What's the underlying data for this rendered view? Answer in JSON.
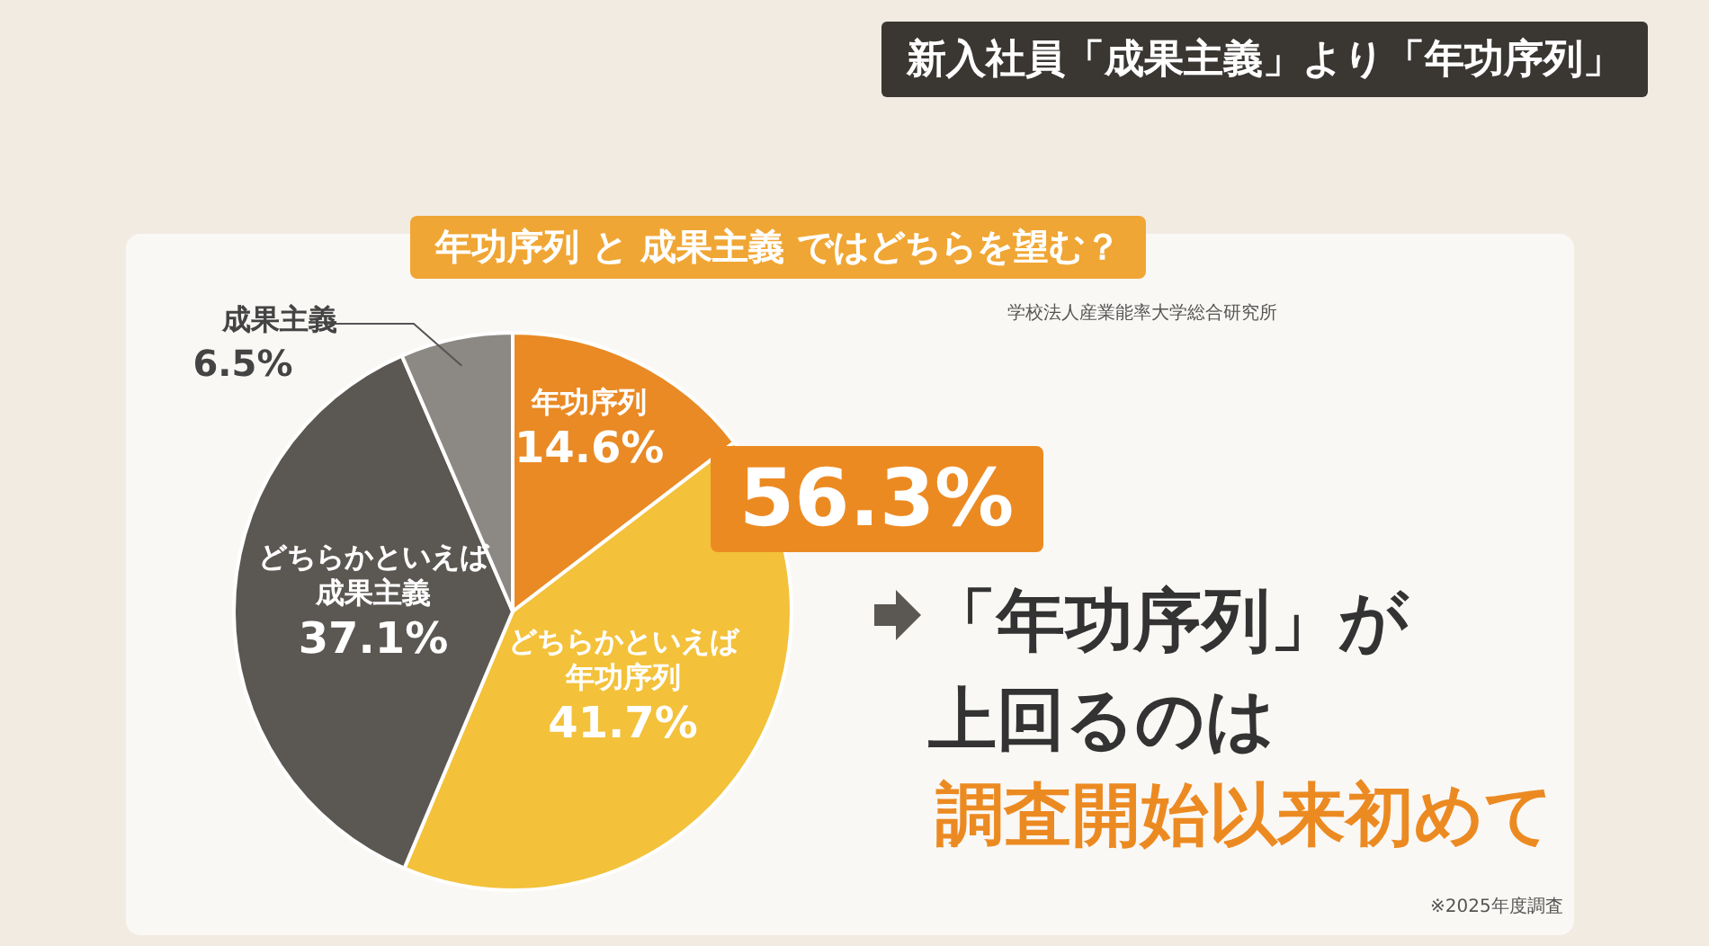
{
  "chart_data": {
    "type": "pie",
    "title": "新入社員「成果主義」より「年功序列」",
    "subtitle": "年功序列 と 成果主義 ではどちらを望む？",
    "categories": [
      "年功序列",
      "どちらかといえば年功序列",
      "どちらかといえば成果主義",
      "成果主義"
    ],
    "values": [
      14.6,
      41.7,
      37.1,
      6.5
    ],
    "colors": [
      "#e98a25",
      "#f3c13a",
      "#5b5752",
      "#8c8883"
    ],
    "value_labels": [
      "14.6%",
      "41.7%",
      "37.1%",
      "6.5%"
    ],
    "annotations": [
      "56.3%",
      "「年功序列」が上回るのは",
      "調査開始以来初めて",
      "学校法人産業能率大学総合研究所",
      "※2025年度調査"
    ]
  }
}
